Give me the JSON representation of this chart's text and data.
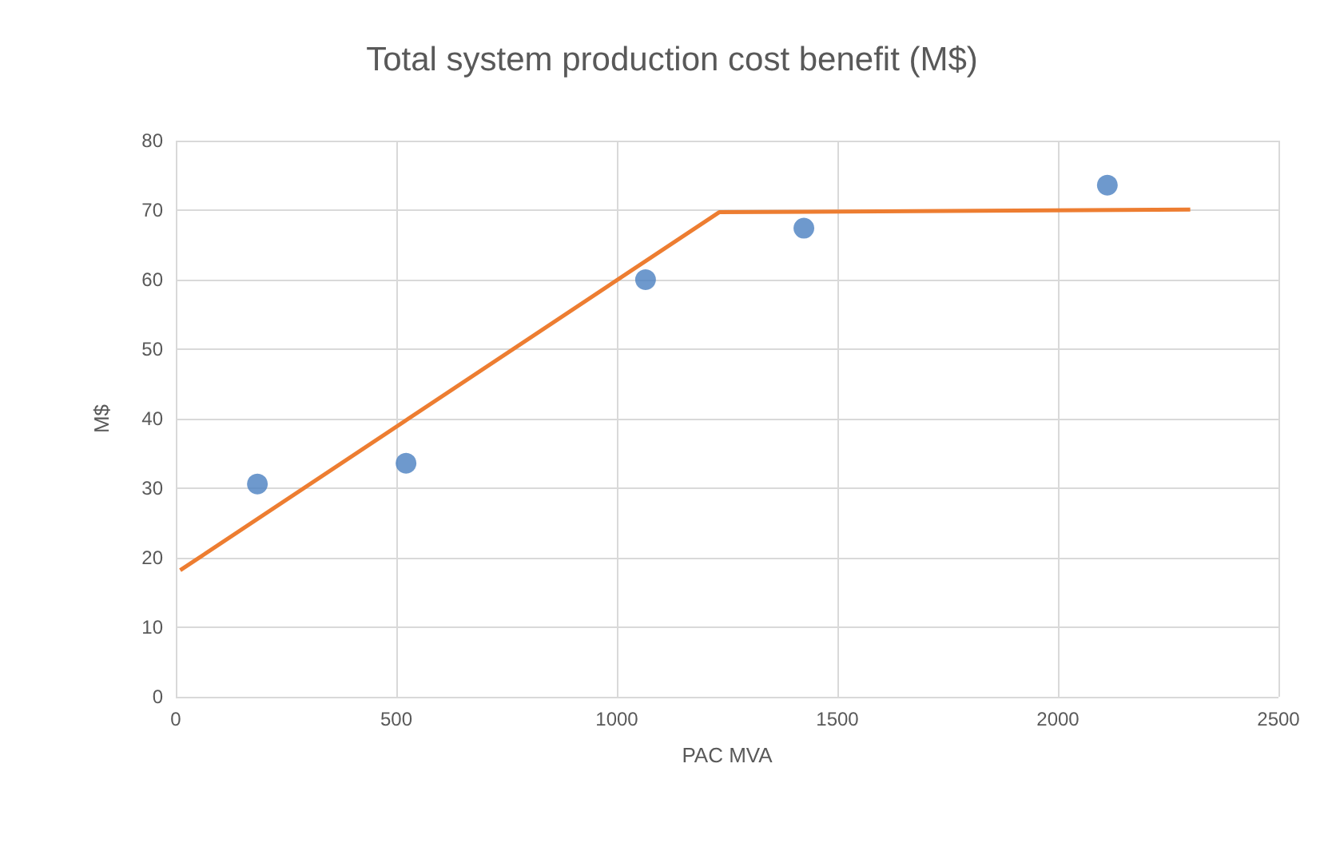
{
  "chart_data": {
    "type": "scatter",
    "title": "Total system production cost benefit (M$)",
    "xlabel": "PAC MVA",
    "ylabel": "M$",
    "xlim": [
      0,
      2500
    ],
    "xticks": [
      0,
      500,
      1000,
      1500,
      2000,
      2500
    ],
    "ylim": [
      0,
      80
    ],
    "yticks": [
      0,
      10,
      20,
      30,
      40,
      50,
      60,
      70,
      80
    ],
    "grid": true,
    "series": [
      {
        "color": "#4a7fc1",
        "marker": "circle",
        "x": [
          185,
          522,
          1065,
          1424,
          2112
        ],
        "values": [
          30.6,
          33.6,
          60,
          67.4,
          73.6
        ]
      },
      {
        "type": "line",
        "color": "#ed7d31",
        "marker": "none",
        "line_style": "solid",
        "x": [
          10,
          1232,
          2300
        ],
        "values": [
          18.2,
          69.7,
          70.1
        ]
      }
    ]
  }
}
